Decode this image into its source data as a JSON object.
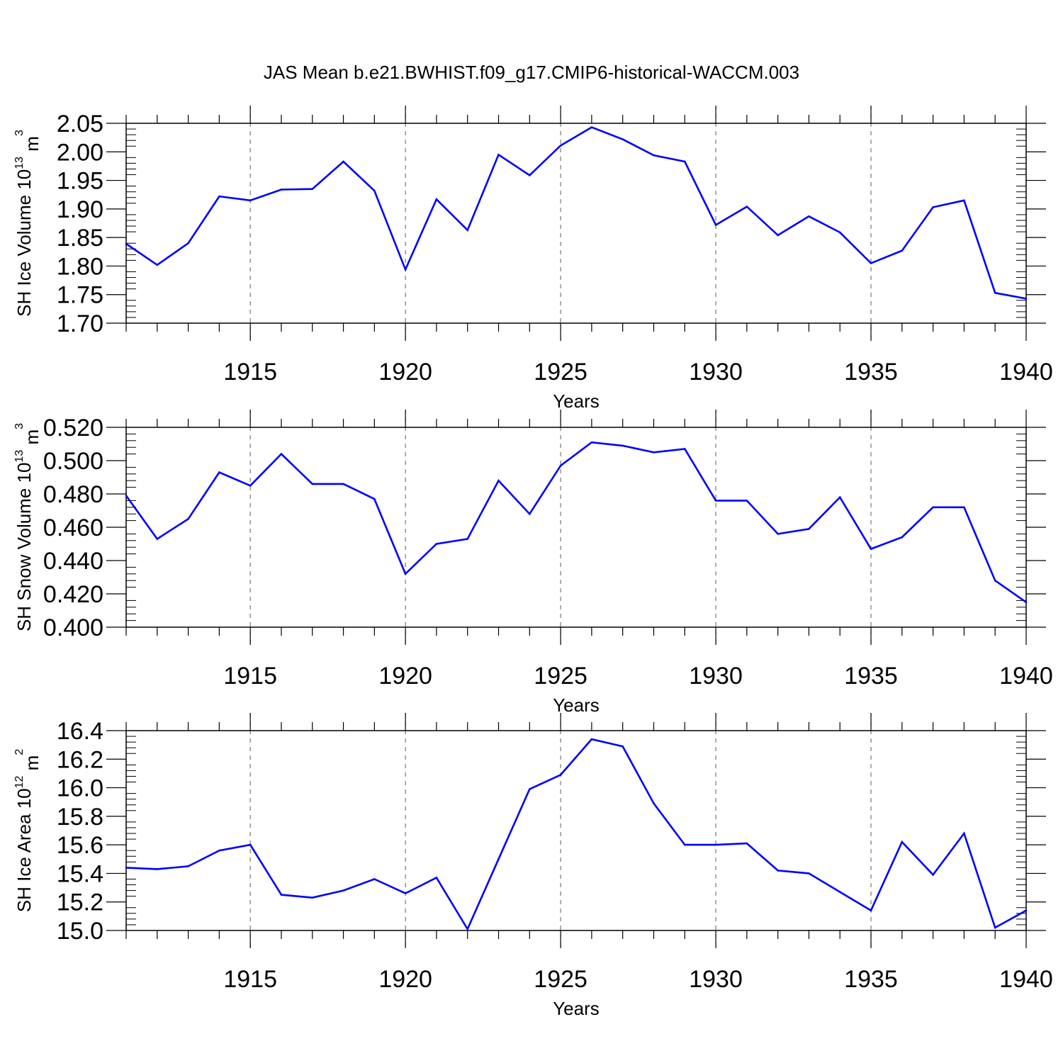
{
  "title": "JAS Mean b.e21.BWHIST.f09_g17.CMIP6-historical-WACCM.003",
  "chart_data": [
    {
      "type": "line",
      "xlabel": "Years",
      "ylabel": "SH Ice Volume 10",
      "ylabel_exp": "13",
      "ylabel_unit": "m",
      "ylabel_unit_exp": "3",
      "xlim": [
        1911,
        1940
      ],
      "ylim": [
        1.7,
        2.05
      ],
      "x_ticks": [
        1915,
        1920,
        1925,
        1930,
        1935,
        1940
      ],
      "x_tick_labels": [
        "1915",
        "1920",
        "1925",
        "1930",
        "1935",
        "1940"
      ],
      "y_ticks": [
        1.7,
        1.75,
        1.8,
        1.85,
        1.9,
        1.95,
        2.0,
        2.05
      ],
      "y_tick_labels": [
        "1.70",
        "1.75",
        "1.80",
        "1.85",
        "1.90",
        "1.95",
        "2.00",
        "2.05"
      ],
      "vgrid": "dashed",
      "x": [
        1911,
        1912,
        1913,
        1914,
        1915,
        1916,
        1917,
        1918,
        1919,
        1920,
        1921,
        1922,
        1923,
        1924,
        1925,
        1926,
        1927,
        1928,
        1929,
        1930,
        1931,
        1932,
        1933,
        1934,
        1935,
        1936,
        1937,
        1938,
        1939,
        1940
      ],
      "series": [
        {
          "color": "#0000ff",
          "values": [
            1.839,
            1.802,
            1.84,
            1.922,
            1.915,
            1.934,
            1.935,
            1.983,
            1.932,
            1.794,
            1.917,
            1.863,
            1.995,
            1.959,
            2.011,
            2.043,
            2.022,
            1.994,
            1.983,
            1.872,
            1.904,
            1.854,
            1.887,
            1.859,
            1.805,
            1.827,
            1.903,
            1.915,
            1.753,
            1.743
          ]
        }
      ]
    },
    {
      "type": "line",
      "xlabel": "Years",
      "ylabel": "SH Snow Volume 10",
      "ylabel_exp": "13",
      "ylabel_unit": "m",
      "ylabel_unit_exp": "3",
      "xlim": [
        1911,
        1940
      ],
      "ylim": [
        0.4,
        0.52
      ],
      "x_ticks": [
        1915,
        1920,
        1925,
        1930,
        1935,
        1940
      ],
      "x_tick_labels": [
        "1915",
        "1920",
        "1925",
        "1930",
        "1935",
        "1940"
      ],
      "y_ticks": [
        0.4,
        0.42,
        0.44,
        0.46,
        0.48,
        0.5,
        0.52
      ],
      "y_tick_labels": [
        "0.400",
        "0.420",
        "0.440",
        "0.460",
        "0.480",
        "0.500",
        "0.520"
      ],
      "vgrid": "dashed",
      "x": [
        1911,
        1912,
        1913,
        1914,
        1915,
        1916,
        1917,
        1918,
        1919,
        1920,
        1921,
        1922,
        1923,
        1924,
        1925,
        1926,
        1927,
        1928,
        1929,
        1930,
        1931,
        1932,
        1933,
        1934,
        1935,
        1936,
        1937,
        1938,
        1939,
        1940
      ],
      "series": [
        {
          "color": "#0000ff",
          "values": [
            0.479,
            0.453,
            0.465,
            0.493,
            0.485,
            0.504,
            0.486,
            0.486,
            0.477,
            0.432,
            0.45,
            0.453,
            0.488,
            0.468,
            0.497,
            0.511,
            0.509,
            0.505,
            0.507,
            0.476,
            0.476,
            0.456,
            0.459,
            0.478,
            0.447,
            0.454,
            0.472,
            0.472,
            0.428,
            0.415
          ]
        }
      ]
    },
    {
      "type": "line",
      "xlabel": "Years",
      "ylabel": "SH Ice Area 10",
      "ylabel_exp": "12",
      "ylabel_unit": "m",
      "ylabel_unit_exp": "2",
      "xlim": [
        1911,
        1940
      ],
      "ylim": [
        15.0,
        16.4
      ],
      "x_ticks": [
        1915,
        1920,
        1925,
        1930,
        1935,
        1940
      ],
      "x_tick_labels": [
        "1915",
        "1920",
        "1925",
        "1930",
        "1935",
        "1940"
      ],
      "y_ticks": [
        15.0,
        15.2,
        15.4,
        15.6,
        15.8,
        16.0,
        16.2,
        16.4
      ],
      "y_tick_labels": [
        "15.0",
        "15.2",
        "15.4",
        "15.6",
        "15.8",
        "16.0",
        "16.2",
        "16.4"
      ],
      "vgrid": "dashed",
      "x": [
        1911,
        1912,
        1913,
        1914,
        1915,
        1916,
        1917,
        1918,
        1919,
        1920,
        1921,
        1922,
        1923,
        1924,
        1925,
        1926,
        1927,
        1928,
        1929,
        1930,
        1931,
        1932,
        1933,
        1934,
        1935,
        1936,
        1937,
        1938,
        1939,
        1940
      ],
      "series": [
        {
          "color": "#0000ff",
          "values": [
            15.44,
            15.43,
            15.45,
            15.56,
            15.6,
            15.25,
            15.23,
            15.28,
            15.36,
            15.26,
            15.37,
            15.01,
            15.5,
            15.99,
            16.09,
            16.34,
            16.29,
            15.89,
            15.6,
            15.6,
            15.61,
            15.42,
            15.4,
            15.27,
            15.14,
            15.62,
            15.39,
            15.68,
            15.02,
            15.14
          ]
        }
      ]
    }
  ]
}
